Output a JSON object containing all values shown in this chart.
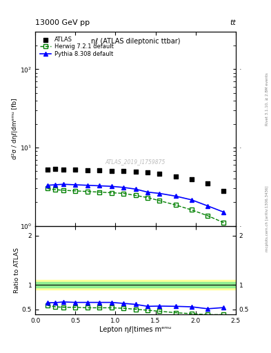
{
  "title_top": "13000 GeV pp",
  "title_top_right": "tt",
  "plot_label": "ηℓ (ATLAS dileptonic ttbar)",
  "watermark": "ATLAS_2019_I1759875",
  "right_label_top": "Rivet 3.1.10, ≥ 2.8M events",
  "right_label_bottom": "mcplots.cern.ch [arXiv:1306.3436]",
  "ylabel_main": "d²σ / dηℓ|dmᵉᵐᵘ [fb]",
  "ylabel_ratio": "Ratio to ATLAS",
  "xlabel": "Lepton ηℓ|times mᵉᵐᵘ",
  "ylim_main": [
    1.0,
    300
  ],
  "ylim_ratio": [
    0.4,
    2.2
  ],
  "ratio_yticks": [
    0.5,
    1.0,
    2.0
  ],
  "atlas_x": [
    0.15,
    0.25,
    0.35,
    0.5,
    0.65,
    0.8,
    0.95,
    1.1,
    1.25,
    1.4,
    1.55,
    1.75,
    1.95,
    2.15,
    2.35
  ],
  "atlas_y": [
    5.2,
    5.3,
    5.25,
    5.2,
    5.15,
    5.1,
    5.05,
    5.0,
    4.9,
    4.8,
    4.6,
    4.3,
    3.9,
    3.5,
    2.8
  ],
  "herwig_x": [
    0.15,
    0.25,
    0.35,
    0.5,
    0.65,
    0.8,
    0.95,
    1.1,
    1.25,
    1.4,
    1.55,
    1.75,
    1.95,
    2.15,
    2.35
  ],
  "herwig_y": [
    3.0,
    2.9,
    2.85,
    2.8,
    2.75,
    2.7,
    2.65,
    2.6,
    2.45,
    2.3,
    2.1,
    1.85,
    1.6,
    1.35,
    1.1
  ],
  "pythia_x": [
    0.15,
    0.25,
    0.35,
    0.5,
    0.65,
    0.8,
    0.95,
    1.1,
    1.25,
    1.4,
    1.55,
    1.75,
    1.95,
    2.15,
    2.35
  ],
  "pythia_y": [
    3.3,
    3.35,
    3.4,
    3.35,
    3.3,
    3.25,
    3.2,
    3.1,
    2.95,
    2.7,
    2.6,
    2.4,
    2.15,
    1.8,
    1.5
  ],
  "herwig_ratio": [
    0.58,
    0.55,
    0.54,
    0.54,
    0.53,
    0.53,
    0.53,
    0.52,
    0.5,
    0.48,
    0.46,
    0.43,
    0.41,
    0.39,
    0.39
  ],
  "pythia_ratio": [
    0.635,
    0.635,
    0.65,
    0.64,
    0.64,
    0.64,
    0.64,
    0.62,
    0.6,
    0.56,
    0.565,
    0.56,
    0.55,
    0.51,
    0.535
  ],
  "atlas_color": "black",
  "herwig_color": "#008000",
  "pythia_color": "blue",
  "band_green": [
    0.95,
    1.05
  ],
  "band_yellow": [
    0.9,
    1.1
  ],
  "legend_atlas": "ATLAS",
  "legend_herwig": "Herwig 7.2.1 default",
  "legend_pythia": "Pythia 8.308 default"
}
